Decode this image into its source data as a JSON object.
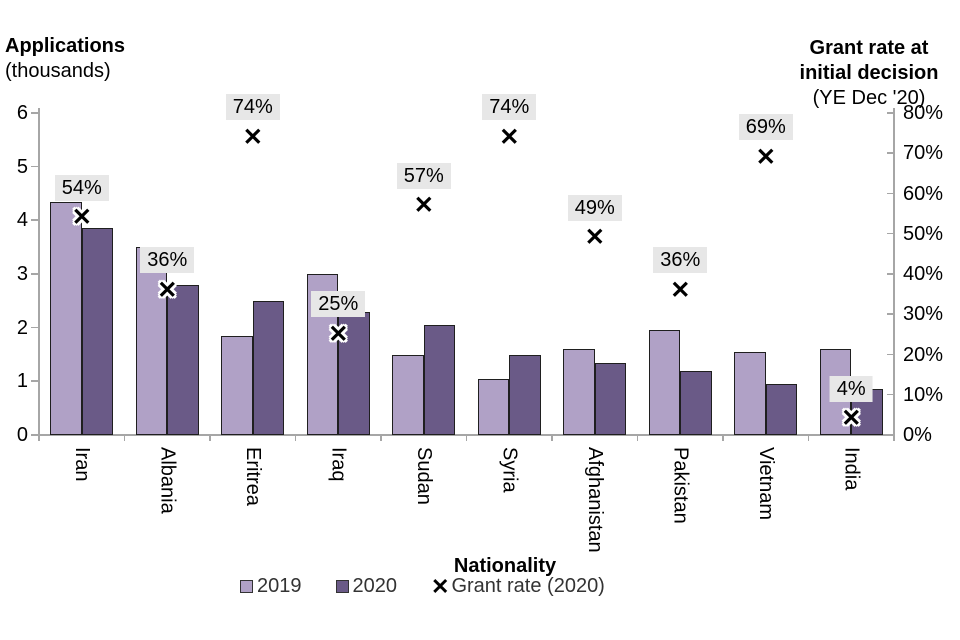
{
  "titles": {
    "left_line1": "Applications",
    "left_line2": "(thousands)",
    "right_line1": "Grant rate at",
    "right_line2": "initial decision",
    "right_line3": "(YE Dec '20)"
  },
  "chart_data": {
    "type": "bar",
    "categories": [
      "Iran",
      "Albania",
      "Eritrea",
      "Iraq",
      "Sudan",
      "Syria",
      "Afghanistan",
      "Pakistan",
      "Vietnam",
      "India"
    ],
    "series": [
      {
        "name": "2019",
        "values": [
          4.35,
          3.5,
          1.85,
          3.0,
          1.5,
          1.05,
          1.6,
          1.95,
          1.55,
          1.6
        ]
      },
      {
        "name": "2020",
        "values": [
          3.85,
          2.8,
          2.5,
          2.3,
          2.05,
          1.5,
          1.35,
          1.2,
          0.95,
          0.85
        ]
      }
    ],
    "marker_series": {
      "name": "Grant rate (2020)",
      "values": [
        54,
        36,
        74,
        25,
        57,
        74,
        49,
        36,
        69,
        4
      ],
      "labels": [
        "54%",
        "36%",
        "74%",
        "25%",
        "57%",
        "74%",
        "49%",
        "36%",
        "69%",
        "4%"
      ],
      "marker_glyph": "✕"
    },
    "left_axis": {
      "min": 0,
      "max": 6,
      "ticks": [
        "0",
        "1",
        "2",
        "3",
        "4",
        "5",
        "6"
      ]
    },
    "right_axis": {
      "min": 0,
      "max": 80,
      "ticks": [
        "0%",
        "10%",
        "20%",
        "30%",
        "40%",
        "50%",
        "60%",
        "70%",
        "80%"
      ]
    },
    "xlabel": "Nationality",
    "legend": [
      "2019",
      "2020",
      "Grant rate (2020)"
    ],
    "legend_position": "bottom",
    "grid": false,
    "colors": {
      "bar_2019": "#b0a1c6",
      "bar_2020": "#6a5a87",
      "bar_border": "#1f1f1f",
      "axis": "#a6a6a6",
      "label_bg": "#e7e7e7",
      "marker": "#000000"
    }
  }
}
